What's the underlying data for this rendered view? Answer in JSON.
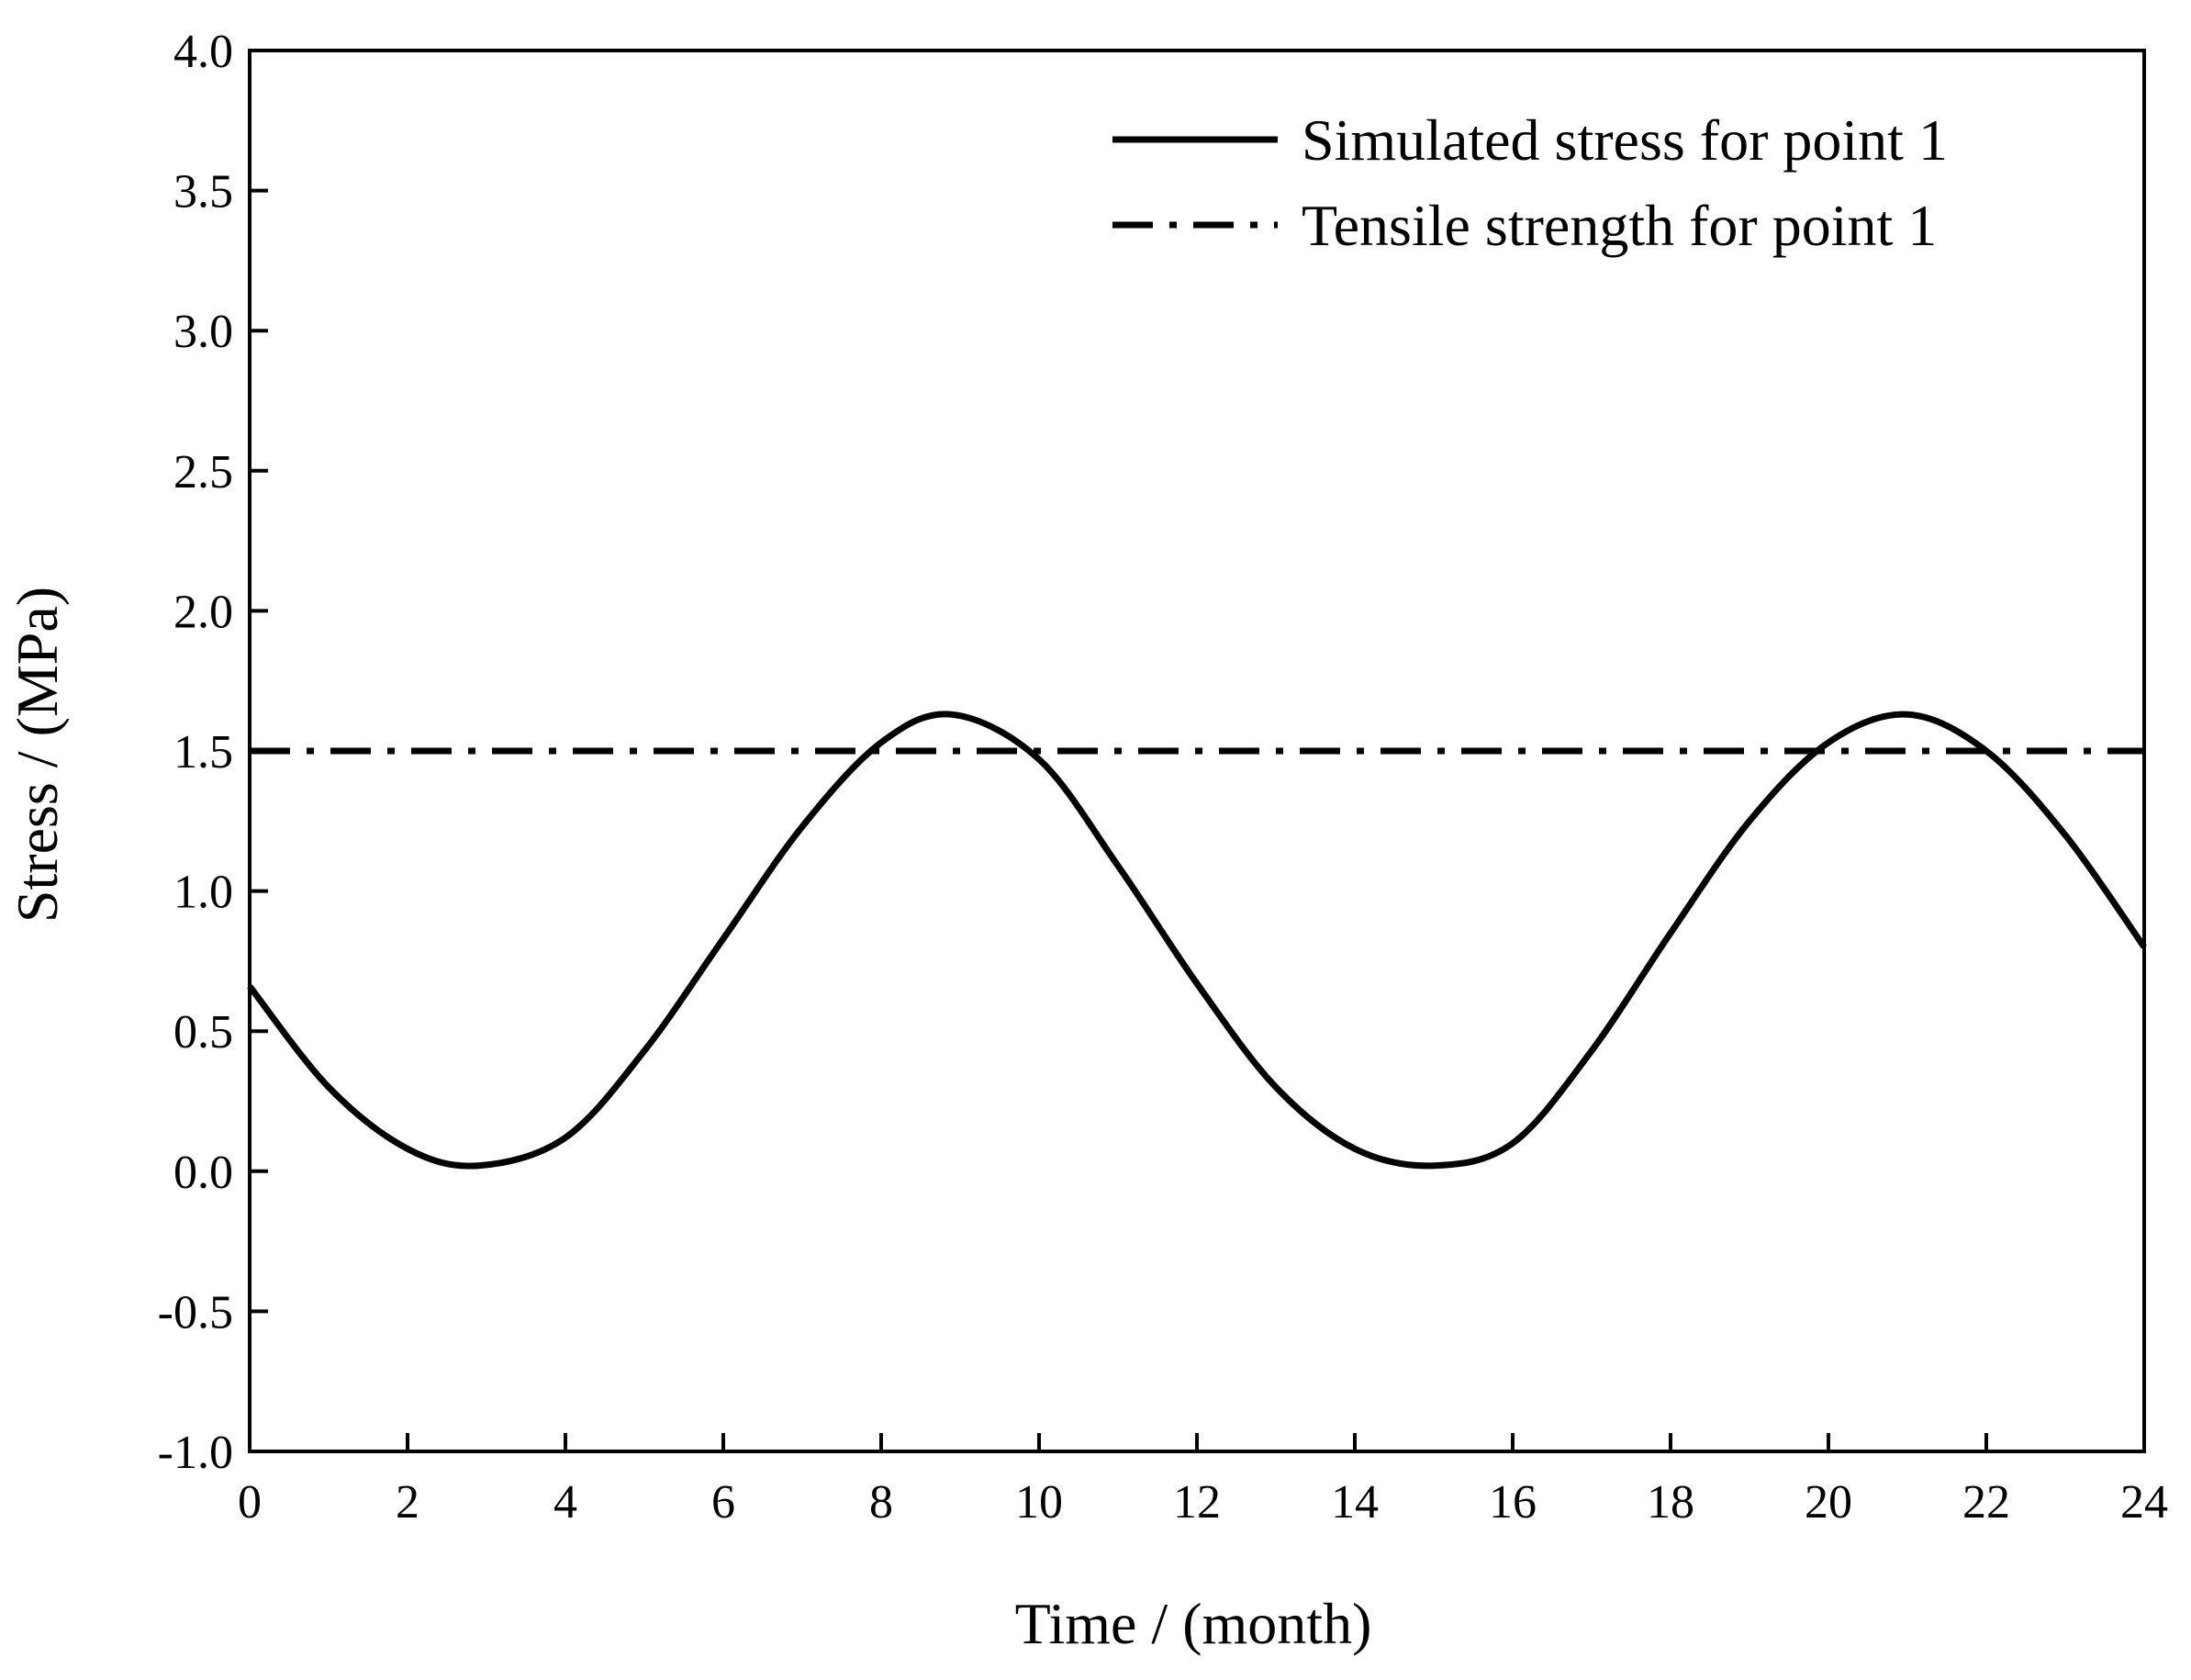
{
  "chart_data": {
    "type": "line",
    "title": "",
    "xlabel": "Time / (month)",
    "ylabel": "Stress / (MPa)",
    "xlim": [
      0,
      24
    ],
    "ylim": [
      -1.0,
      4.0
    ],
    "x_ticks": [
      0,
      2,
      4,
      6,
      8,
      10,
      12,
      14,
      16,
      18,
      20,
      22,
      24
    ],
    "x_tick_labels": [
      "0",
      "2",
      "4",
      "6",
      "8",
      "10",
      "12",
      "14",
      "16",
      "18",
      "20",
      "22",
      "24"
    ],
    "y_ticks": [
      -1.0,
      -0.5,
      0.0,
      0.5,
      1.0,
      1.5,
      2.0,
      2.5,
      3.0,
      3.5,
      4.0
    ],
    "y_tick_labels": [
      "-1.0",
      "-0.5",
      "0.0",
      "0.5",
      "1.0",
      "1.5",
      "2.0",
      "2.5",
      "3.0",
      "3.5",
      "4.0"
    ],
    "grid": false,
    "legend_position": "top-right",
    "series": [
      {
        "name": "Simulated stress for point 1",
        "style": "solid",
        "color": "#000000",
        "x": [
          0,
          1,
          2,
          2.9,
          4,
          5,
          6,
          7,
          8,
          8.9,
          10,
          11,
          12,
          13,
          14,
          15,
          16,
          17,
          18,
          19,
          20,
          21,
          22,
          23,
          24
        ],
        "values": [
          0.66,
          0.3,
          0.08,
          0.02,
          0.12,
          0.43,
          0.83,
          1.23,
          1.53,
          1.63,
          1.47,
          1.09,
          0.67,
          0.3,
          0.08,
          0.02,
          0.1,
          0.43,
          0.85,
          1.25,
          1.53,
          1.63,
          1.5,
          1.2,
          0.8
        ]
      },
      {
        "name": "Tensile strength for point 1",
        "style": "dash-dot",
        "color": "#000000",
        "x": [
          0,
          24
        ],
        "values": [
          1.5,
          1.5
        ]
      }
    ]
  }
}
